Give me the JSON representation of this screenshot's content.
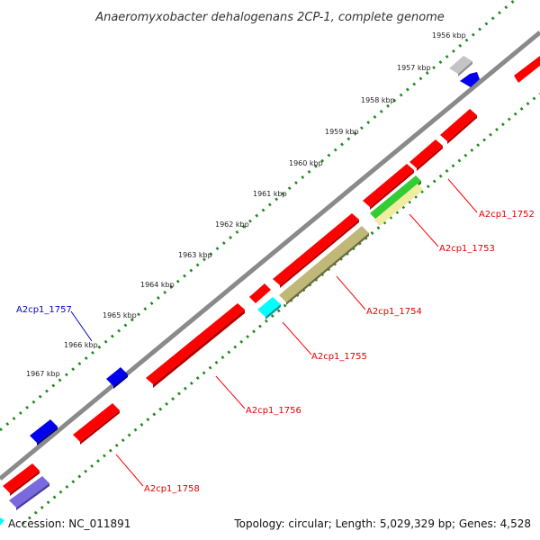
{
  "title": "Anaeromyxobacter dehalogenans 2CP-1, complete genome",
  "footer": {
    "accession": "Accession: NC_011891",
    "summary": "Topology: circular; Length: 5,029,329 bp; Genes: 4,528"
  },
  "ticks": [
    "1956 kbp",
    "1957 kbp",
    "1958 kbp",
    "1959 kbp",
    "1960 kbp",
    "1961 kbp",
    "1962 kbp",
    "1963 kbp",
    "1964 kbp",
    "1965 kbp",
    "1966 kbp",
    "1967 kbp"
  ],
  "gene_labels": {
    "g1752": "A2cp1_1752",
    "g1753": "A2cp1_1753",
    "g1754": "A2cp1_1754",
    "g1755": "A2cp1_1755",
    "g1756": "A2cp1_1756",
    "g1757": "A2cp1_1757",
    "g1758": "A2cp1_1758"
  },
  "colors": {
    "backbone": "#777777",
    "tick_ring": "#1f8a1f",
    "gene_red": "#ff0000",
    "label_red": "#e00000",
    "label_blue": "#0000cc",
    "blue": "#0000ee",
    "cyan": "#00ffff",
    "green": "#33cc33",
    "khaki": "#b8b070",
    "lightyellow": "#f0eca0",
    "lavender": "#7a6adf",
    "gray": "#c0c0c0"
  }
}
